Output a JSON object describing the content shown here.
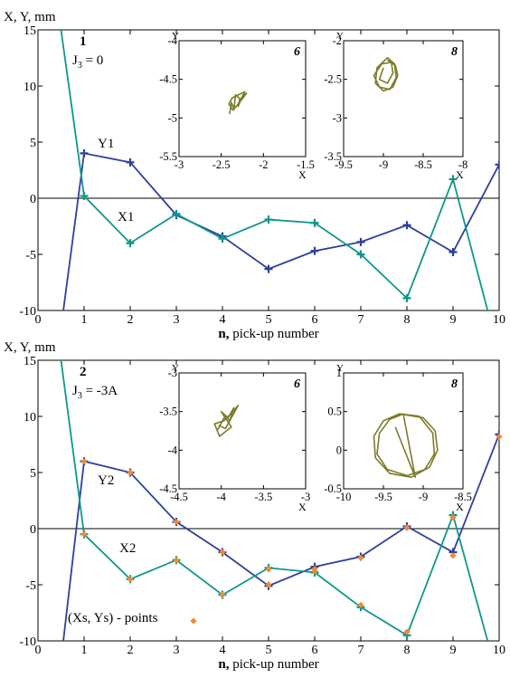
{
  "colors": {
    "blue": "#2e3f9e",
    "teal": "#10968c",
    "olive": "#7d7a2a",
    "orange": "#f08a2e",
    "axis": "#000000"
  },
  "chart_data": [
    {
      "type": "line",
      "panel_label": "1",
      "condition": "J3 = 0",
      "ylabel": "X, Y, mm",
      "xlabel_bold": "n,",
      "xlabel": " pick-up number",
      "xlim": [
        0,
        10
      ],
      "ylim": [
        -10,
        15
      ],
      "xticks": [
        "0",
        "1",
        "2",
        "3",
        "4",
        "5",
        "6",
        "7",
        "8",
        "9",
        "10"
      ],
      "yticks": [
        "-10",
        "-5",
        "0",
        "5",
        "10",
        "15"
      ],
      "series": [
        {
          "name": "Y1",
          "color": "blue",
          "x": [
            0.55,
            1,
            2,
            3,
            4,
            5,
            6,
            7,
            8,
            9,
            10
          ],
          "y": [
            -10,
            4.0,
            3.2,
            -1.5,
            -3.4,
            -6.3,
            -4.7,
            -3.9,
            -2.4,
            -4.8,
            3.0
          ],
          "markers": [
            3.1
          ]
        },
        {
          "name": "X1",
          "color": "teal",
          "x": [
            0.5,
            1,
            2,
            3,
            4,
            5,
            6,
            7,
            8,
            9,
            9.75
          ],
          "y": [
            15,
            0.2,
            -4.0,
            -1.4,
            -3.6,
            -1.9,
            -2.2,
            -5.0,
            -8.9,
            1.7,
            -10
          ],
          "markers": []
        }
      ],
      "insets": [
        {
          "label": "6",
          "xlabel": "X",
          "ylabel": "Y",
          "xlim": [
            -3,
            -1.5
          ],
          "ylim": [
            -5.5,
            -4
          ],
          "xticks": [
            "-3",
            "-2.5",
            "-2",
            "-1.5"
          ],
          "yticks": [
            "-4",
            "-4.5",
            "-5",
            "-5.5"
          ],
          "trace": [
            [
              -2.4,
              -4.95
            ],
            [
              -2.38,
              -4.8
            ],
            [
              -2.35,
              -4.88
            ],
            [
              -2.33,
              -4.7
            ],
            [
              -2.28,
              -4.75
            ],
            [
              -2.3,
              -4.85
            ],
            [
              -2.25,
              -4.72
            ],
            [
              -2.2,
              -4.68
            ],
            [
              -2.27,
              -4.78
            ],
            [
              -2.36,
              -4.9
            ],
            [
              -2.41,
              -4.82
            ],
            [
              -2.37,
              -4.74
            ],
            [
              -2.22,
              -4.66
            ],
            [
              -2.3,
              -4.82
            ]
          ]
        },
        {
          "label": "8",
          "xlabel": "X",
          "ylabel": "Y",
          "xlim": [
            -9.5,
            -8
          ],
          "ylim": [
            -3.5,
            -2
          ],
          "xticks": [
            "-9.5",
            "-9",
            "-8.5",
            "-8"
          ],
          "yticks": [
            "-2",
            "-2.5",
            "-3",
            "-3.5"
          ],
          "trace": [
            [
              -8.95,
              -2.25
            ],
            [
              -8.85,
              -2.32
            ],
            [
              -8.82,
              -2.45
            ],
            [
              -8.88,
              -2.6
            ],
            [
              -9.0,
              -2.65
            ],
            [
              -9.1,
              -2.55
            ],
            [
              -9.08,
              -2.35
            ],
            [
              -8.95,
              -2.22
            ],
            [
              -8.86,
              -2.3
            ],
            [
              -8.84,
              -2.48
            ],
            [
              -8.92,
              -2.63
            ],
            [
              -9.05,
              -2.6
            ],
            [
              -9.12,
              -2.45
            ],
            [
              -9.02,
              -2.3
            ],
            [
              -8.9,
              -2.28
            ],
            [
              -8.88,
              -2.42
            ],
            [
              -8.95,
              -2.55
            ],
            [
              -9.05,
              -2.5
            ],
            [
              -9.0,
              -2.35
            ]
          ]
        }
      ]
    },
    {
      "type": "line",
      "panel_label": "2",
      "condition": "J3 = -3A",
      "ylabel": "X, Y, mm",
      "xlabel_bold": "n,",
      "xlabel": " pick-up number",
      "xlim": [
        0,
        10
      ],
      "ylim": [
        -10,
        15
      ],
      "xticks": [
        "0",
        "1",
        "2",
        "3",
        "4",
        "5",
        "6",
        "7",
        "8",
        "9",
        "10"
      ],
      "yticks": [
        "-10",
        "-5",
        "0",
        "5",
        "10",
        "15"
      ],
      "series": [
        {
          "name": "Y2",
          "color": "blue",
          "x": [
            0.55,
            1,
            2,
            3,
            4,
            5,
            6,
            7,
            8,
            9,
            10
          ],
          "y": [
            -10,
            6.0,
            5.0,
            0.6,
            -2.1,
            -5.1,
            -3.4,
            -2.5,
            0.2,
            -2.1,
            8.4
          ],
          "markers": []
        },
        {
          "name": "X2",
          "color": "teal",
          "x": [
            0.5,
            1,
            2,
            3,
            4,
            5,
            6,
            7,
            8,
            9,
            9.75
          ],
          "y": [
            15,
            -0.5,
            -4.5,
            -2.8,
            -5.9,
            -3.5,
            -3.9,
            -7.0,
            -9.5,
            1.2,
            -10
          ],
          "markers": []
        }
      ],
      "points_label": "(Xs, Ys) - points",
      "points": [
        [
          1,
          -0.5
        ],
        [
          2,
          -4.5
        ],
        [
          3,
          -2.8
        ],
        [
          4,
          -5.9
        ],
        [
          5,
          -3.6
        ],
        [
          6,
          -3.8
        ],
        [
          7,
          -6.8
        ],
        [
          8,
          -9.2
        ],
        [
          9,
          1.0
        ],
        [
          10,
          8.2
        ],
        [
          1,
          6.0
        ],
        [
          2,
          5.0
        ],
        [
          3,
          0.6
        ],
        [
          4,
          -2.1
        ],
        [
          5,
          -5.0
        ],
        [
          6,
          -3.6
        ],
        [
          7,
          -2.6
        ],
        [
          8,
          0.1
        ],
        [
          9,
          -2.4
        ]
      ],
      "insets": [
        {
          "label": "6",
          "xlabel": "X",
          "ylabel": "Y",
          "xlim": [
            -4.5,
            -3
          ],
          "ylim": [
            -4.5,
            -3
          ],
          "xticks": [
            "-4.5",
            "-4",
            "-3.5",
            "-3"
          ],
          "yticks": [
            "-3",
            "-3.5",
            "-4",
            "-4.5"
          ],
          "trace": [
            [
              -4.05,
              -3.75
            ],
            [
              -3.95,
              -3.55
            ],
            [
              -3.9,
              -3.62
            ],
            [
              -3.85,
              -3.45
            ],
            [
              -3.92,
              -3.58
            ],
            [
              -4.0,
              -3.5
            ],
            [
              -3.88,
              -3.7
            ],
            [
              -4.02,
              -3.82
            ],
            [
              -4.08,
              -3.66
            ],
            [
              -3.97,
              -3.62
            ],
            [
              -3.86,
              -3.5
            ],
            [
              -3.8,
              -3.42
            ],
            [
              -3.95,
              -3.72
            ],
            [
              -4.03,
              -3.68
            ]
          ]
        },
        {
          "label": "8",
          "xlabel": "X",
          "ylabel": "Y",
          "xlim": [
            -10,
            -8.5
          ],
          "ylim": [
            -0.5,
            1
          ],
          "xticks": [
            "-10",
            "-9.5",
            "-9",
            "-8.5"
          ],
          "yticks": [
            "1",
            "0.5",
            "0",
            "-0.5"
          ],
          "trace": [
            [
              -9.3,
              0.47
            ],
            [
              -9.0,
              0.42
            ],
            [
              -8.85,
              0.25
            ],
            [
              -8.82,
              0.0
            ],
            [
              -8.92,
              -0.22
            ],
            [
              -9.15,
              -0.35
            ],
            [
              -9.42,
              -0.3
            ],
            [
              -9.6,
              -0.1
            ],
            [
              -9.62,
              0.18
            ],
            [
              -9.5,
              0.38
            ],
            [
              -9.3,
              0.47
            ],
            [
              -9.05,
              0.44
            ],
            [
              -8.88,
              0.22
            ],
            [
              -8.86,
              -0.05
            ],
            [
              -8.98,
              -0.25
            ],
            [
              -9.2,
              -0.33
            ],
            [
              -9.45,
              -0.25
            ],
            [
              -9.58,
              -0.05
            ],
            [
              -9.55,
              0.22
            ],
            [
              -9.42,
              0.4
            ],
            [
              -9.25,
              0.47
            ],
            [
              -9.1,
              -0.35
            ],
            [
              -9.35,
              0.3
            ]
          ]
        }
      ]
    }
  ]
}
